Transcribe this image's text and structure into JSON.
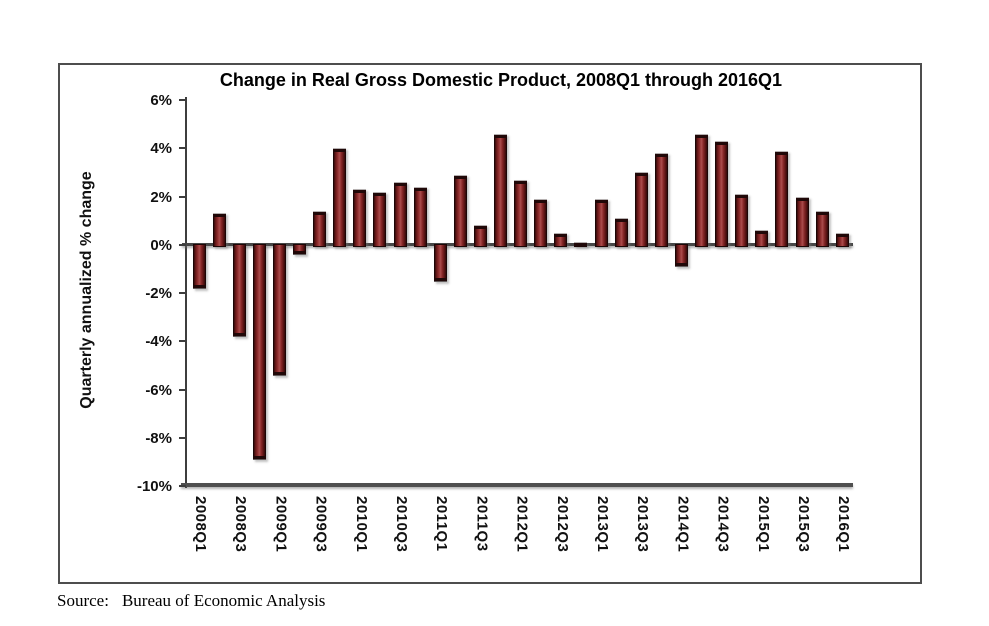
{
  "figure": {
    "title": "Change in Real Gross Domestic Product, 2008Q1 through 2016Q1",
    "source_label": "Source:",
    "source_text": "Bureau of Economic Analysis"
  },
  "chart_data": {
    "type": "bar",
    "title": "Change in Real Gross Domestic Product, 2008Q1 through 2016Q1",
    "xlabel": "",
    "ylabel": "Quarterly annualized % change",
    "ylim": [
      -10,
      6
    ],
    "ytick_interval": 2,
    "ytick_labels": [
      "6%",
      "4%",
      "2%",
      "0%",
      "-2%",
      "-4%",
      "-6%",
      "-8%",
      "-10%"
    ],
    "grid": false,
    "legend": "none",
    "bar_color": "#8b2a2a",
    "bar_outline_color": "#1c0606",
    "axis_color": "#3d3d3d",
    "categories": [
      "2008Q1",
      "2008Q2",
      "2008Q3",
      "2008Q4",
      "2009Q1",
      "2009Q2",
      "2009Q3",
      "2009Q4",
      "2010Q1",
      "2010Q2",
      "2010Q3",
      "2010Q4",
      "2011Q1",
      "2011Q2",
      "2011Q3",
      "2011Q4",
      "2012Q1",
      "2012Q2",
      "2012Q3",
      "2012Q4",
      "2013Q1",
      "2013Q2",
      "2013Q3",
      "2013Q4",
      "2014Q1",
      "2014Q2",
      "2014Q3",
      "2014Q4",
      "2015Q1",
      "2015Q2",
      "2015Q3",
      "2015Q4",
      "2016Q1"
    ],
    "values": [
      -1.8,
      1.3,
      -3.8,
      -8.9,
      -5.4,
      -0.4,
      1.4,
      4.0,
      2.3,
      2.2,
      2.6,
      2.4,
      -1.5,
      2.9,
      0.8,
      4.6,
      2.7,
      1.9,
      0.5,
      0.1,
      1.9,
      1.1,
      3.0,
      3.8,
      -0.9,
      4.6,
      4.3,
      2.1,
      0.6,
      3.9,
      2.0,
      1.4,
      0.5
    ],
    "xtick_labels_shown": [
      "2008Q1",
      "2008Q3",
      "2009Q1",
      "2009Q3",
      "2010Q1",
      "2010Q3",
      "2011Q1",
      "2011Q3",
      "2012Q1",
      "2012Q3",
      "2013Q1",
      "2013Q3",
      "2014Q1",
      "2014Q3",
      "2015Q1",
      "2015Q3",
      "2016Q1"
    ]
  }
}
